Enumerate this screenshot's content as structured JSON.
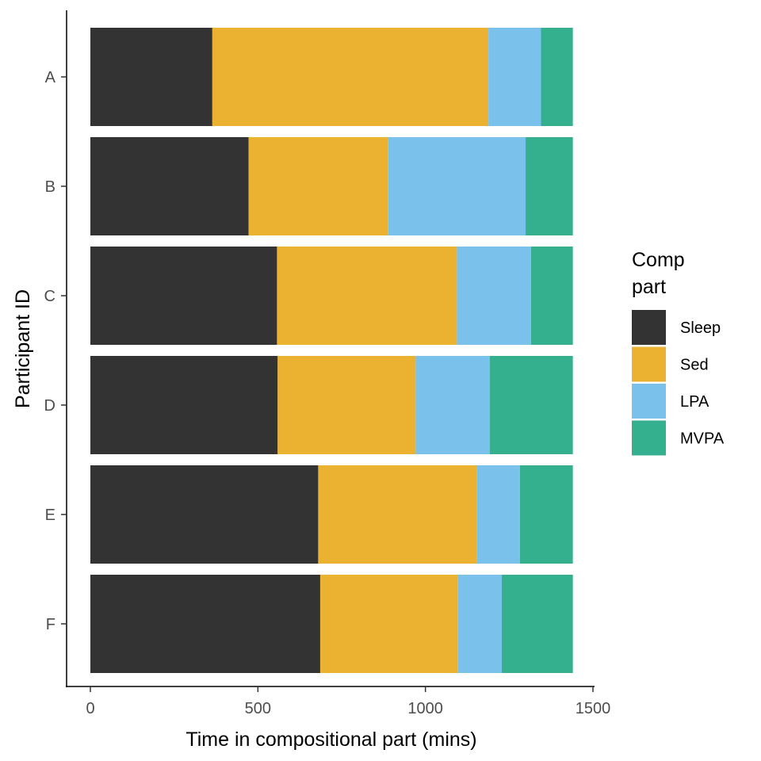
{
  "chart_data": {
    "type": "bar",
    "orientation": "horizontal",
    "stacked": true,
    "xlabel": "Time in compositional part (mins)",
    "ylabel": "Participant ID",
    "xlim": [
      0,
      1500
    ],
    "xticks": [
      0,
      500,
      1000,
      1500
    ],
    "grid": false,
    "legend_position": "right",
    "categories": [
      "A",
      "B",
      "C",
      "D",
      "E",
      "F"
    ],
    "legend": {
      "title_lines": [
        "Comp",
        "part"
      ]
    },
    "series": [
      {
        "name": "Sleep",
        "color": "#333333",
        "values": [
          364,
          472,
          557,
          559,
          680,
          686
        ]
      },
      {
        "name": "Sed",
        "color": "#EBB131",
        "values": [
          824,
          417,
          537,
          412,
          473,
          410
        ]
      },
      {
        "name": "LPA",
        "color": "#7AC1EC",
        "values": [
          157,
          410,
          221,
          221,
          129,
          132
        ]
      },
      {
        "name": "MVPA",
        "color": "#34B08E",
        "values": [
          95,
          141,
          125,
          248,
          158,
          212
        ]
      }
    ]
  }
}
